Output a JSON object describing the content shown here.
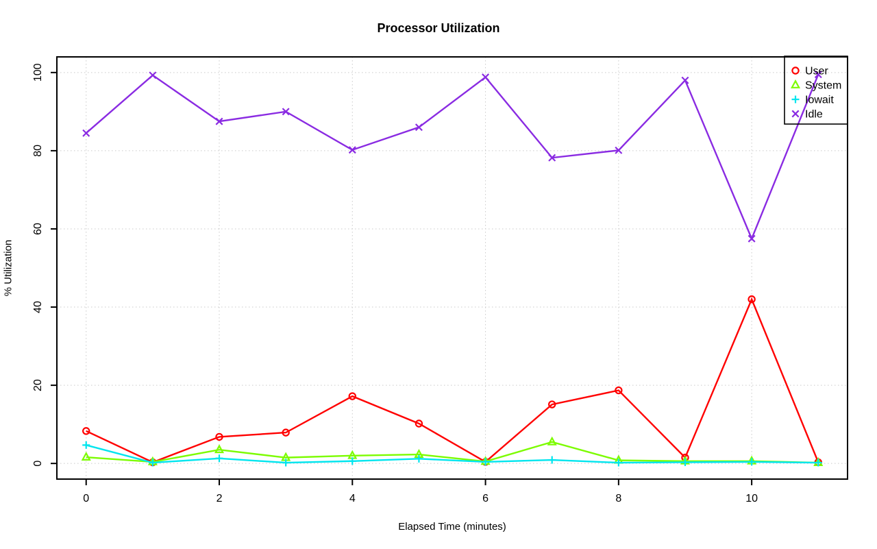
{
  "chart_data": {
    "type": "line",
    "title": "Processor Utilization",
    "xlabel": "Elapsed Time (minutes)",
    "ylabel": "% Utilization",
    "x": [
      0,
      1,
      2,
      3,
      4,
      5,
      6,
      7,
      8,
      9,
      10,
      11
    ],
    "xlim": [
      -0.44,
      11.44
    ],
    "ylim": [
      -4,
      104
    ],
    "x_ticks": [
      0,
      2,
      4,
      6,
      8,
      10
    ],
    "y_ticks": [
      0,
      20,
      40,
      60,
      80,
      100
    ],
    "grid": true,
    "grid_color": "#C9C9C9",
    "axis_color": "#000000",
    "background_color": "#FFFFFF",
    "legend_position": "top-right",
    "series": [
      {
        "name": "User",
        "color": "#FF0000",
        "marker": "circle",
        "values": [
          8.3,
          0.3,
          6.8,
          7.9,
          17.2,
          10.2,
          0.4,
          15.1,
          18.7,
          1.5,
          42.0,
          0.3
        ]
      },
      {
        "name": "System",
        "color": "#7CFC00",
        "marker": "triangle",
        "values": [
          1.6,
          0.4,
          3.5,
          1.5,
          2.0,
          2.3,
          0.5,
          5.5,
          0.8,
          0.6,
          0.6,
          0.2
        ]
      },
      {
        "name": "Iowait",
        "color": "#00E5EE",
        "marker": "plus",
        "values": [
          4.7,
          0.2,
          1.3,
          0.2,
          0.6,
          1.2,
          0.4,
          0.9,
          0.2,
          0.3,
          0.4,
          0.2
        ]
      },
      {
        "name": "Idle",
        "color": "#8A2BE2",
        "marker": "x",
        "values": [
          84.5,
          99.3,
          87.5,
          90.0,
          80.2,
          86.0,
          98.8,
          78.2,
          80.1,
          98.0,
          57.5,
          99.5
        ]
      }
    ]
  }
}
